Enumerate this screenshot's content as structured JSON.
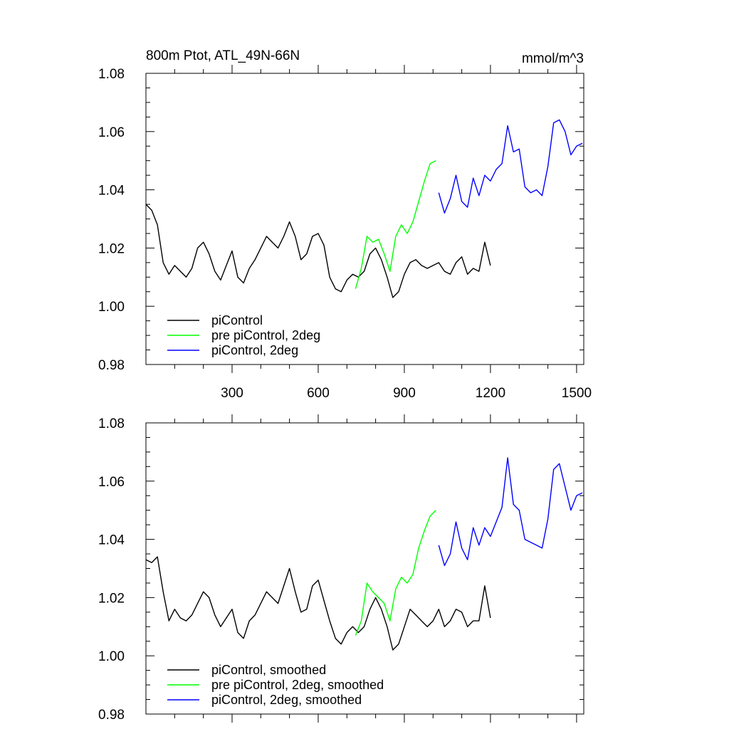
{
  "figure": {
    "title": "800m Ptot, ATL_49N-66N",
    "units": "mmol/m^3"
  },
  "chart_data": [
    {
      "type": "line",
      "panel": "top",
      "xlim": [
        0,
        1525
      ],
      "ylim": [
        0.98,
        1.08
      ],
      "xticks": [
        300,
        600,
        900,
        1200,
        1500
      ],
      "xtick_labels": [
        "300",
        "600",
        "900",
        "1200",
        "1500"
      ],
      "yticks": [
        0.98,
        1.0,
        1.02,
        1.04,
        1.06,
        1.08
      ],
      "ytick_labels": [
        "0.98",
        "1.00",
        "1.02",
        "1.04",
        "1.06",
        "1.08"
      ],
      "legend_position": "bottom-left",
      "series": [
        {
          "name": "piControl",
          "color": "#000000",
          "x": [
            0,
            20,
            40,
            60,
            80,
            100,
            120,
            140,
            160,
            180,
            200,
            220,
            240,
            260,
            280,
            300,
            320,
            340,
            360,
            380,
            400,
            420,
            440,
            460,
            480,
            500,
            520,
            540,
            560,
            580,
            600,
            620,
            640,
            660,
            680,
            700,
            720,
            740,
            760,
            780,
            800,
            820,
            840,
            860,
            880,
            900,
            920,
            940,
            960,
            980,
            1000,
            1020,
            1040,
            1060,
            1080,
            1100,
            1120,
            1140,
            1160,
            1180,
            1200
          ],
          "values": [
            1.035,
            1.033,
            1.028,
            1.015,
            1.011,
            1.014,
            1.012,
            1.01,
            1.013,
            1.02,
            1.022,
            1.018,
            1.012,
            1.009,
            1.014,
            1.019,
            1.01,
            1.008,
            1.013,
            1.016,
            1.02,
            1.024,
            1.022,
            1.02,
            1.024,
            1.029,
            1.024,
            1.016,
            1.018,
            1.024,
            1.025,
            1.021,
            1.01,
            1.006,
            1.005,
            1.009,
            1.011,
            1.01,
            1.012,
            1.018,
            1.02,
            1.016,
            1.01,
            1.003,
            1.005,
            1.011,
            1.015,
            1.016,
            1.014,
            1.013,
            1.014,
            1.015,
            1.012,
            1.011,
            1.015,
            1.017,
            1.011,
            1.013,
            1.012,
            1.022,
            1.014
          ]
        },
        {
          "name": "pre piControl, 2deg",
          "color": "#00ff00",
          "x": [
            730,
            750,
            770,
            790,
            810,
            830,
            850,
            870,
            890,
            910,
            930,
            950,
            970,
            990,
            1010
          ],
          "values": [
            1.006,
            1.013,
            1.024,
            1.022,
            1.023,
            1.018,
            1.012,
            1.024,
            1.028,
            1.025,
            1.029,
            1.036,
            1.043,
            1.049,
            1.05
          ]
        },
        {
          "name": "piControl, 2deg",
          "color": "#0000ff",
          "x": [
            1020,
            1040,
            1060,
            1080,
            1100,
            1120,
            1140,
            1160,
            1180,
            1200,
            1220,
            1240,
            1260,
            1280,
            1300,
            1320,
            1340,
            1360,
            1380,
            1400,
            1420,
            1440,
            1460,
            1480,
            1500,
            1520
          ],
          "values": [
            1.039,
            1.032,
            1.037,
            1.045,
            1.036,
            1.034,
            1.044,
            1.038,
            1.045,
            1.043,
            1.047,
            1.049,
            1.062,
            1.053,
            1.054,
            1.041,
            1.039,
            1.04,
            1.038,
            1.048,
            1.063,
            1.064,
            1.06,
            1.052,
            1.055,
            1.056
          ]
        }
      ]
    },
    {
      "type": "line",
      "panel": "bottom",
      "xlim": [
        0,
        1525
      ],
      "ylim": [
        0.98,
        1.08
      ],
      "yticks": [
        0.98,
        1.0,
        1.02,
        1.04,
        1.06,
        1.08
      ],
      "ytick_labels": [
        "0.98",
        "1.00",
        "1.02",
        "1.04",
        "1.06",
        "1.08"
      ],
      "legend_position": "bottom-left",
      "series": [
        {
          "name": "piControl, smoothed",
          "color": "#000000",
          "x": [
            0,
            20,
            40,
            60,
            80,
            100,
            120,
            140,
            160,
            180,
            200,
            220,
            240,
            260,
            280,
            300,
            320,
            340,
            360,
            380,
            400,
            420,
            440,
            460,
            480,
            500,
            520,
            540,
            560,
            580,
            600,
            620,
            640,
            660,
            680,
            700,
            720,
            740,
            760,
            780,
            800,
            820,
            840,
            860,
            880,
            900,
            920,
            940,
            960,
            980,
            1000,
            1020,
            1040,
            1060,
            1080,
            1100,
            1120,
            1140,
            1160,
            1180,
            1200
          ],
          "values": [
            1.033,
            1.032,
            1.034,
            1.022,
            1.012,
            1.016,
            1.013,
            1.012,
            1.014,
            1.018,
            1.022,
            1.02,
            1.014,
            1.01,
            1.013,
            1.016,
            1.008,
            1.006,
            1.012,
            1.014,
            1.018,
            1.022,
            1.02,
            1.018,
            1.024,
            1.03,
            1.022,
            1.015,
            1.016,
            1.024,
            1.026,
            1.019,
            1.012,
            1.006,
            1.004,
            1.008,
            1.01,
            1.008,
            1.01,
            1.016,
            1.02,
            1.016,
            1.01,
            1.002,
            1.004,
            1.01,
            1.016,
            1.014,
            1.012,
            1.01,
            1.012,
            1.016,
            1.01,
            1.012,
            1.016,
            1.015,
            1.01,
            1.012,
            1.012,
            1.024,
            1.013
          ]
        },
        {
          "name": "pre piControl, 2deg, smoothed",
          "color": "#00ff00",
          "x": [
            730,
            750,
            770,
            790,
            810,
            830,
            850,
            870,
            890,
            910,
            930,
            950,
            970,
            990,
            1010
          ],
          "values": [
            1.007,
            1.012,
            1.025,
            1.022,
            1.02,
            1.018,
            1.012,
            1.023,
            1.027,
            1.025,
            1.028,
            1.037,
            1.043,
            1.048,
            1.05
          ]
        },
        {
          "name": "piControl, 2deg, smoothed",
          "color": "#0000ff",
          "x": [
            1020,
            1040,
            1060,
            1080,
            1100,
            1120,
            1140,
            1160,
            1180,
            1200,
            1220,
            1240,
            1260,
            1280,
            1300,
            1320,
            1340,
            1360,
            1380,
            1400,
            1420,
            1440,
            1460,
            1480,
            1500,
            1520
          ],
          "values": [
            1.038,
            1.031,
            1.035,
            1.046,
            1.037,
            1.033,
            1.044,
            1.038,
            1.044,
            1.041,
            1.046,
            1.051,
            1.068,
            1.052,
            1.05,
            1.04,
            1.039,
            1.038,
            1.037,
            1.047,
            1.064,
            1.066,
            1.058,
            1.05,
            1.055,
            1.056
          ]
        }
      ]
    }
  ]
}
